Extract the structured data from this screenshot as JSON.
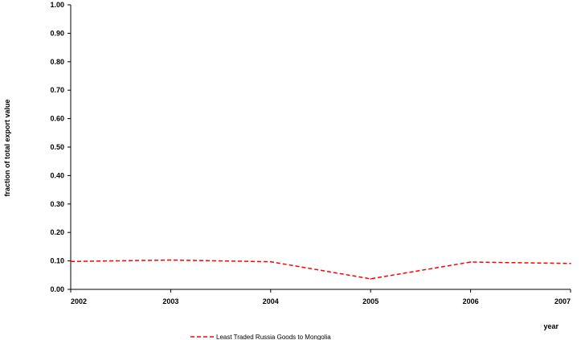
{
  "chart_data": {
    "type": "line",
    "title": "",
    "xlabel": "year",
    "ylabel": "fraction of total export value",
    "x": [
      2002,
      2003,
      2004,
      2005,
      2006,
      2007
    ],
    "xlim": [
      2002,
      2007
    ],
    "ylim": [
      0,
      1
    ],
    "x_ticks": [
      "2002",
      "2003",
      "2004",
      "2005",
      "2006",
      "2007"
    ],
    "y_ticks": [
      "0.00",
      "0.10",
      "0.20",
      "0.30",
      "0.40",
      "0.50",
      "0.60",
      "0.70",
      "0.80",
      "0.90",
      "1.00"
    ],
    "grid": false,
    "legend_position": "bottom",
    "series": [
      {
        "name": "Least Traded Russia Goods to Mongolia",
        "values": [
          0.098,
          0.103,
          0.097,
          0.037,
          0.096,
          0.091
        ],
        "color": "#ff0000",
        "dash": "dashed"
      }
    ]
  }
}
